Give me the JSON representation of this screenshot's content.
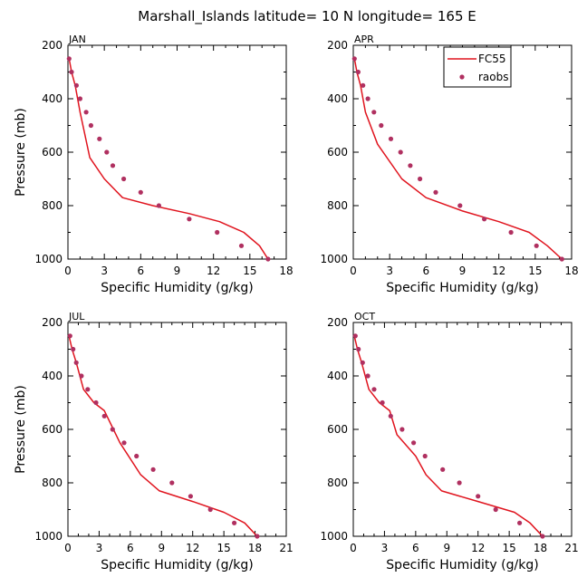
{
  "title": "Marshall_Islands  latitude= 10 N longitude= 165 E",
  "legend": {
    "entries": [
      {
        "label": "FC55",
        "type": "line",
        "color": "#e0141e"
      },
      {
        "label": "raobs",
        "type": "dot",
        "color": "#b03060"
      }
    ]
  },
  "colors": {
    "model": "#e0141e",
    "obs": "#b03060"
  },
  "chart_data": [
    {
      "type": "line",
      "panel": "JAN",
      "xlabel": "Specific Humidity (g/kg)",
      "ylabel": "Pressure (mb)",
      "xlim": [
        0,
        18
      ],
      "ylim": [
        1000,
        200
      ],
      "xticks": [
        0,
        3,
        6,
        9,
        12,
        15,
        18
      ],
      "yticks": [
        200,
        400,
        600,
        800,
        1000
      ],
      "series": [
        {
          "name": "FC55",
          "kind": "line",
          "x": [
            0.1,
            0.3,
            0.6,
            1.0,
            1.8,
            3.0,
            4.5,
            7.0,
            10.0,
            12.5,
            14.5,
            15.8,
            16.5
          ],
          "y": [
            250,
            300,
            350,
            450,
            620,
            700,
            770,
            800,
            830,
            860,
            900,
            950,
            1000
          ]
        },
        {
          "name": "raobs",
          "kind": "scatter",
          "x": [
            0.1,
            0.3,
            0.7,
            1.0,
            1.5,
            1.9,
            2.6,
            3.2,
            3.7,
            4.6,
            6.0,
            7.5,
            10.0,
            12.3,
            14.3,
            16.5
          ],
          "y": [
            250,
            300,
            350,
            400,
            450,
            500,
            550,
            600,
            650,
            700,
            750,
            800,
            850,
            900,
            950,
            1000
          ]
        }
      ]
    },
    {
      "type": "line",
      "panel": "APR",
      "xlabel": "Specific Humidity (g/kg)",
      "ylabel": "",
      "xlim": [
        0,
        18
      ],
      "ylim": [
        1000,
        200
      ],
      "xticks": [
        0,
        3,
        6,
        9,
        12,
        15,
        18
      ],
      "yticks": [
        200,
        400,
        600,
        800,
        1000
      ],
      "series": [
        {
          "name": "FC55",
          "kind": "line",
          "x": [
            0.1,
            0.3,
            0.6,
            1.0,
            2.0,
            4.0,
            6.0,
            9.0,
            12.0,
            14.5,
            16.0,
            17.2
          ],
          "y": [
            250,
            300,
            350,
            450,
            570,
            700,
            770,
            820,
            860,
            900,
            950,
            1000
          ]
        },
        {
          "name": "raobs",
          "kind": "scatter",
          "x": [
            0.1,
            0.4,
            0.8,
            1.2,
            1.7,
            2.3,
            3.1,
            3.9,
            4.7,
            5.5,
            6.8,
            8.8,
            10.8,
            13.0,
            15.1,
            17.2
          ],
          "y": [
            250,
            300,
            350,
            400,
            450,
            500,
            550,
            600,
            650,
            700,
            750,
            800,
            850,
            900,
            950,
            1000
          ]
        }
      ]
    },
    {
      "type": "line",
      "panel": "JUL",
      "xlabel": "Specific Humidity (g/kg)",
      "ylabel": "Pressure (mb)",
      "xlim": [
        0,
        21
      ],
      "ylim": [
        1000,
        200
      ],
      "xticks": [
        0,
        3,
        6,
        9,
        12,
        15,
        18,
        21
      ],
      "yticks": [
        200,
        400,
        600,
        800,
        1000
      ],
      "series": [
        {
          "name": "FC55",
          "kind": "line",
          "x": [
            0.1,
            0.4,
            0.8,
            1.5,
            2.5,
            3.5,
            5.0,
            7.0,
            8.8,
            12.0,
            15.0,
            17.0,
            18.2
          ],
          "y": [
            250,
            300,
            350,
            450,
            500,
            530,
            650,
            770,
            830,
            870,
            910,
            950,
            1000
          ]
        },
        {
          "name": "raobs",
          "kind": "scatter",
          "x": [
            0.2,
            0.5,
            0.8,
            1.3,
            1.9,
            2.7,
            3.5,
            4.3,
            5.4,
            6.6,
            8.2,
            10.0,
            11.8,
            13.7,
            16.0,
            18.2
          ],
          "y": [
            250,
            300,
            350,
            400,
            450,
            500,
            550,
            600,
            650,
            700,
            750,
            800,
            850,
            900,
            950,
            1000
          ]
        }
      ]
    },
    {
      "type": "line",
      "panel": "OCT",
      "xlabel": "Specific Humidity (g/kg)",
      "ylabel": "",
      "xlim": [
        0,
        21
      ],
      "ylim": [
        1000,
        200
      ],
      "xticks": [
        0,
        3,
        6,
        9,
        12,
        15,
        18,
        21
      ],
      "yticks": [
        200,
        400,
        600,
        800,
        1000
      ],
      "series": [
        {
          "name": "FC55",
          "kind": "line",
          "x": [
            0.1,
            0.4,
            0.8,
            1.5,
            2.5,
            3.5,
            4.2,
            6.0,
            7.0,
            8.5,
            12.0,
            15.5,
            17.0,
            18.2
          ],
          "y": [
            250,
            300,
            350,
            450,
            500,
            530,
            620,
            700,
            770,
            830,
            870,
            910,
            950,
            1000
          ]
        },
        {
          "name": "raobs",
          "kind": "scatter",
          "x": [
            0.2,
            0.5,
            0.9,
            1.4,
            2.0,
            2.8,
            3.6,
            4.7,
            5.8,
            6.9,
            8.6,
            10.2,
            12.0,
            13.7,
            16.0,
            18.2
          ],
          "y": [
            250,
            300,
            350,
            400,
            450,
            500,
            550,
            600,
            650,
            700,
            750,
            800,
            850,
            900,
            950,
            1000
          ]
        }
      ]
    }
  ]
}
